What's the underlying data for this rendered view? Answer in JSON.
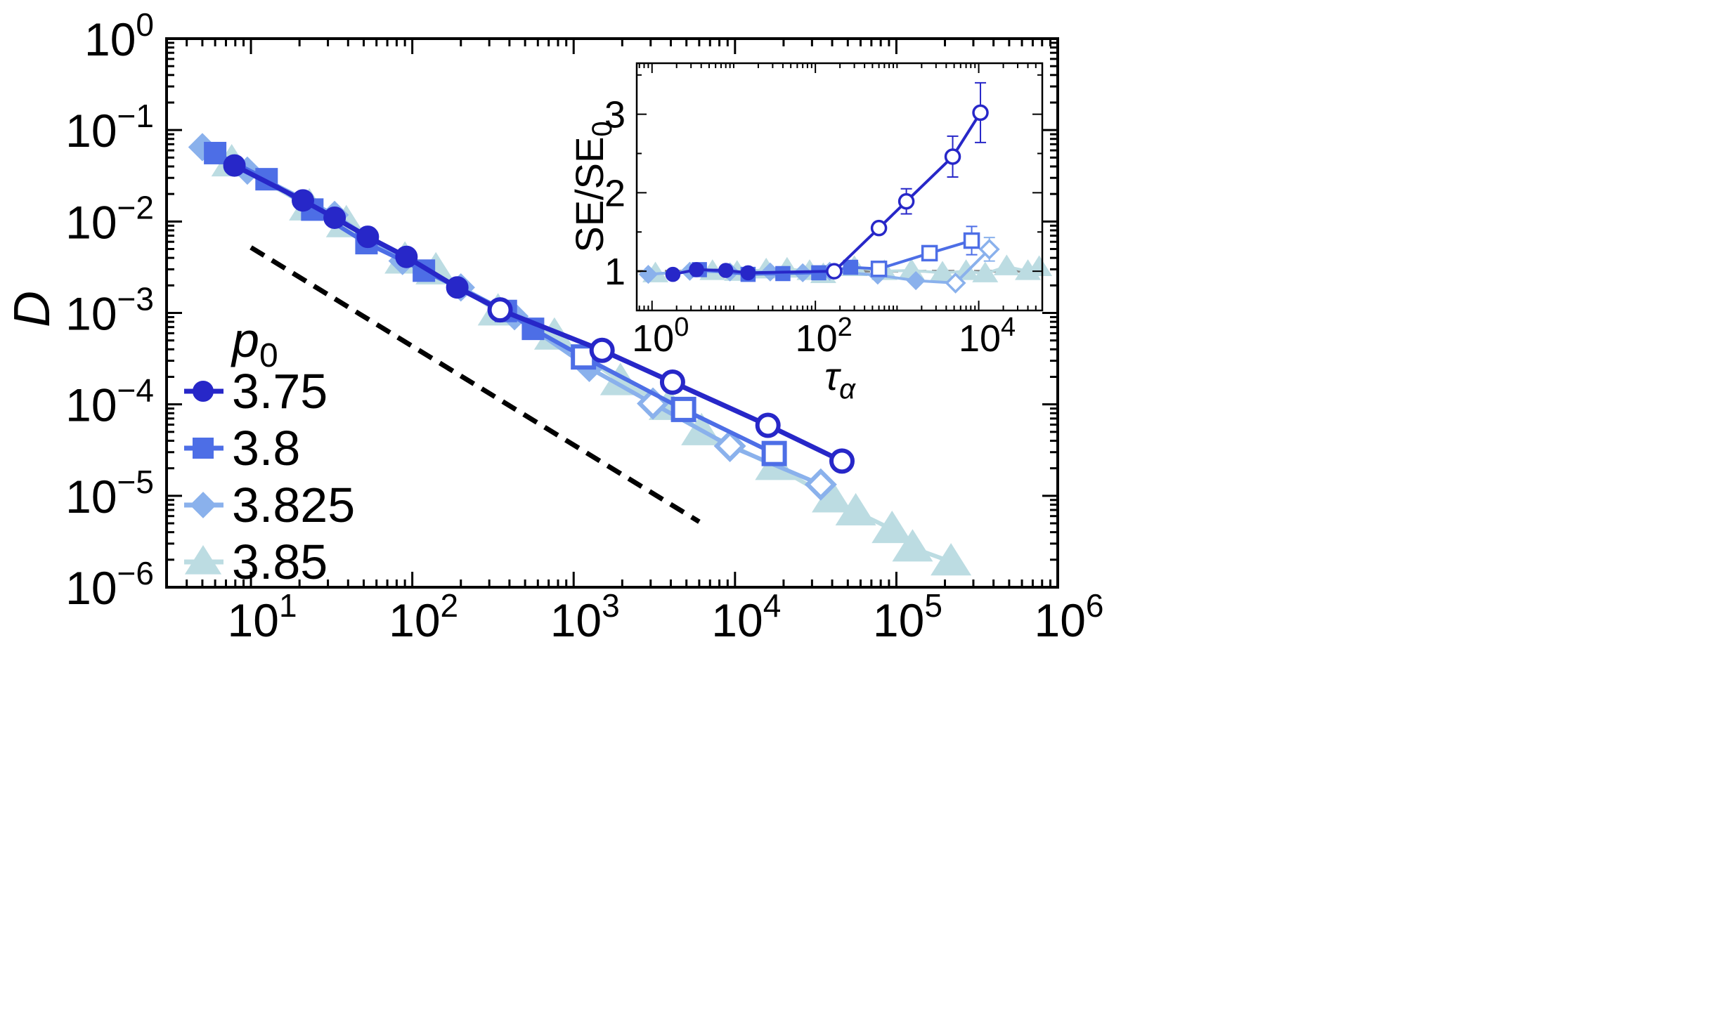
{
  "chart_data": [
    {
      "type": "line",
      "x_scale": "log",
      "y_scale": "log",
      "xlim": [
        3,
        1000000
      ],
      "ylim": [
        1e-06,
        1
      ],
      "xlabel": "",
      "ylabel": "D",
      "x_ticks": [
        {
          "value": 10,
          "base": "10",
          "exp": "1"
        },
        {
          "value": 100,
          "base": "10",
          "exp": "2"
        },
        {
          "value": 1000,
          "base": "10",
          "exp": "3"
        },
        {
          "value": 10000,
          "base": "10",
          "exp": "4"
        },
        {
          "value": 100000,
          "base": "10",
          "exp": "5"
        },
        {
          "value": 1000000,
          "base": "10",
          "exp": "6"
        }
      ],
      "y_ticks": [
        {
          "value": 1,
          "base": "10",
          "exp": "0"
        },
        {
          "value": 0.1,
          "base": "10",
          "exp": "−1"
        },
        {
          "value": 0.01,
          "base": "10",
          "exp": "−2"
        },
        {
          "value": 0.001,
          "base": "10",
          "exp": "−3"
        },
        {
          "value": 0.0001,
          "base": "10",
          "exp": "−4"
        },
        {
          "value": 1e-05,
          "base": "10",
          "exp": "−5"
        },
        {
          "value": 1e-06,
          "base": "10",
          "exp": "−6"
        }
      ],
      "legend": {
        "title_base": "p",
        "title_sub": "0",
        "placement": "lower-left"
      },
      "series": [
        {
          "name": "3.75",
          "marker": "circle",
          "color": "#2727c8",
          "x": [
            7.9,
            21,
            33,
            53,
            92,
            190,
            350,
            1500,
            4100,
            16000,
            46000
          ],
          "y": [
            0.041,
            0.017,
            0.011,
            0.0068,
            0.0041,
            0.0019,
            0.00108,
            0.00039,
            0.000175,
            5.9e-05,
            2.4e-05
          ],
          "open_from": 350
        },
        {
          "name": "3.8",
          "marker": "square",
          "color": "#4d6ee6",
          "x": [
            6,
            12.5,
            24,
            52,
            118,
            380,
            560,
            1150,
            4800,
            17500
          ],
          "y": [
            0.056,
            0.029,
            0.0135,
            0.0058,
            0.0029,
            0.00105,
            0.00067,
            0.00033,
            8.8e-05,
            2.9e-05
          ],
          "open_from": 1150
        },
        {
          "name": "3.825",
          "marker": "diamond",
          "color": "#8ab1ec",
          "x": [
            5,
            9.5,
            33,
            87,
            200,
            430,
            1250,
            3100,
            9300,
            34000
          ],
          "y": [
            0.065,
            0.036,
            0.0118,
            0.0037,
            0.0019,
            0.00092,
            0.00025,
            0.000102,
            3.5e-05,
            1.33e-05
          ],
          "open_from": 3100
        },
        {
          "name": "3.85",
          "marker": "triangle",
          "color": "#bcdce2",
          "x": [
            7.6,
            23,
            39,
            90,
            140,
            340,
            760,
            1950,
            3900,
            6200,
            17800,
            40000,
            56000,
            94000,
            126000,
            218000
          ],
          "y": [
            0.044,
            0.0145,
            0.0095,
            0.0038,
            0.0029,
            0.00103,
            0.00056,
            0.000178,
            9.54e-05,
            5.05e-05,
            2.1e-05,
            9.3e-06,
            6.7e-06,
            4.3e-06,
            2.7e-06,
            1.9e-06
          ]
        }
      ],
      "reference_line": {
        "style": "dashed",
        "color": "#000000",
        "x": [
          10,
          6000
        ],
        "y": [
          0.0052,
          5.2e-06
        ]
      }
    },
    {
      "type": "line",
      "role": "inset",
      "x_scale": "log",
      "y_scale": "linear",
      "xlim": [
        0.65,
        60000
      ],
      "ylim": [
        0.5,
        3.65
      ],
      "xlabel_base": "τ",
      "xlabel_sub": "α",
      "ylabel_base": "SE/SE",
      "ylabel_sub": "0",
      "x_ticks": [
        {
          "value": 1,
          "base": "10",
          "exp": "0"
        },
        {
          "value": 100,
          "base": "10",
          "exp": "2"
        },
        {
          "value": 10000,
          "base": "10",
          "exp": "4"
        }
      ],
      "y_ticks": [
        {
          "value": 1,
          "label": "1"
        },
        {
          "value": 2,
          "label": "2"
        },
        {
          "value": 3,
          "label": "3"
        }
      ],
      "reference_line": {
        "style": "dashed",
        "color": "#888888",
        "y": 1
      },
      "series": [
        {
          "name": "3.75",
          "marker": "circle",
          "color": "#2727c8",
          "x": [
            1.8,
            3.5,
            8,
            15,
            170,
            600,
            1300,
            4800,
            10500
          ],
          "y": [
            0.96,
            1.02,
            1.01,
            0.98,
            1.0,
            1.55,
            1.89,
            2.46,
            3.02
          ],
          "err": [
            0,
            0,
            0,
            0,
            0,
            0,
            0.16,
            0.26,
            0.38
          ],
          "open_from": 170
        },
        {
          "name": "3.8",
          "marker": "square",
          "color": "#4d6ee6",
          "x": [
            3.8,
            15,
            40,
            110,
            270,
            600,
            2500,
            8200
          ],
          "y": [
            1.02,
            0.96,
            0.97,
            0.98,
            1.05,
            1.03,
            1.23,
            1.39
          ],
          "err": [
            0,
            0,
            0,
            0,
            0,
            0,
            0,
            0.18
          ],
          "open_from": 600
        },
        {
          "name": "3.825",
          "marker": "diamond",
          "color": "#8ab1ec",
          "x": [
            0.9,
            2.9,
            9,
            28,
            70,
            150,
            580,
            1700,
            5200,
            13500
          ],
          "y": [
            0.96,
            1.0,
            0.99,
            0.99,
            0.98,
            1.0,
            0.95,
            0.88,
            0.85,
            1.28
          ],
          "err": [
            0,
            0,
            0,
            0,
            0,
            0,
            0,
            0,
            0,
            0.15
          ],
          "open_from": 5200
        },
        {
          "name": "3.85",
          "marker": "triangle",
          "color": "#bcdce2",
          "x": [
            1.1,
            5.5,
            11,
            25,
            45,
            85,
            125,
            300,
            700,
            1500,
            3600,
            7000,
            12000,
            22000,
            40000,
            55000
          ],
          "y": [
            0.97,
            1.0,
            0.99,
            1.02,
            1.03,
            1.0,
            0.96,
            1.05,
            1.0,
            1.01,
            0.98,
            1.0,
            0.97,
            1.06,
            1.0,
            1.05
          ]
        }
      ]
    }
  ]
}
